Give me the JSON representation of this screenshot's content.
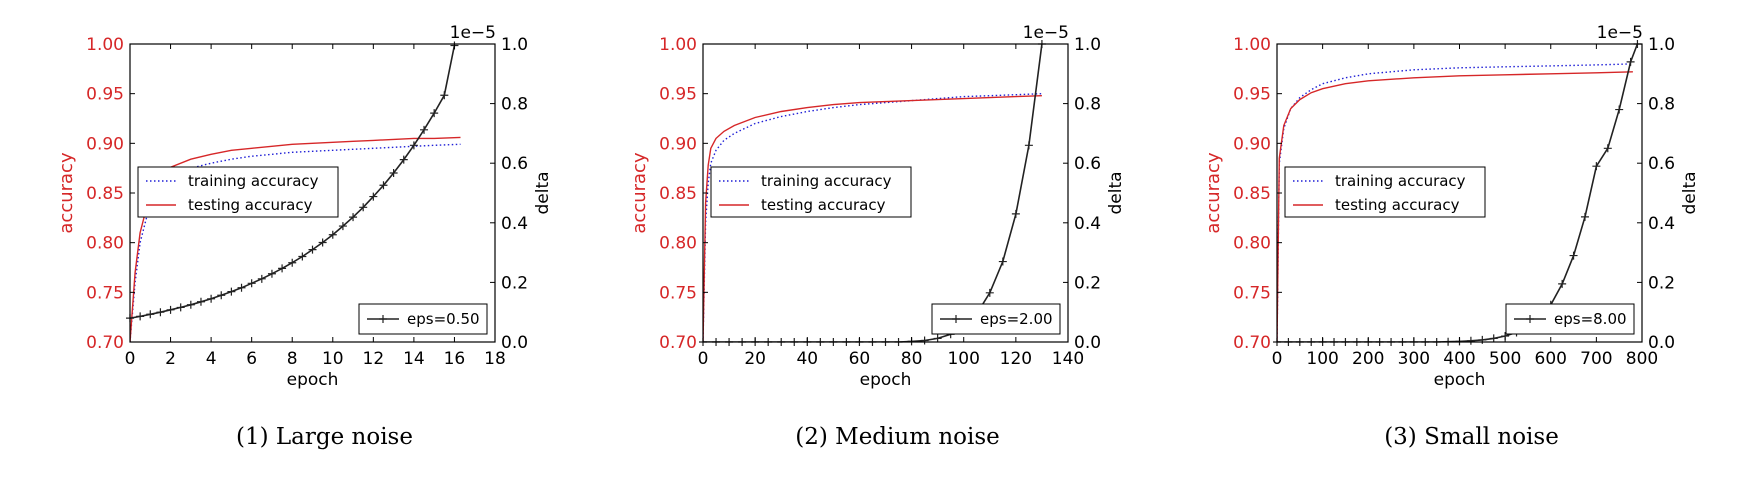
{
  "colors": {
    "accuracy_axis": "#d62728",
    "training": "#1f1fd6",
    "testing": "#d62728",
    "delta": "#222222"
  },
  "chart_data": [
    {
      "type": "line",
      "caption": "(1) Large noise",
      "xlabel": "epoch",
      "ylabel_left": "accuracy",
      "ylabel_right": "delta",
      "right_axis_exponent": "1e−5",
      "xlim": [
        0,
        18
      ],
      "xticks": [
        0,
        2,
        4,
        6,
        8,
        10,
        12,
        14,
        16,
        18
      ],
      "ylim_left": [
        0.7,
        1.0
      ],
      "yticks_left": [
        "0.70",
        "0.75",
        "0.80",
        "0.85",
        "0.90",
        "0.95",
        "1.00"
      ],
      "ylim_right": [
        0.0,
        1.0
      ],
      "yticks_right": [
        "0.0",
        "0.2",
        "0.4",
        "0.6",
        "0.8",
        "1.0"
      ],
      "legend_left": {
        "placement": "center-left",
        "entries": [
          "training accuracy",
          "testing accuracy"
        ]
      },
      "legend_right": {
        "placement": "bottom-right",
        "entries": [
          "eps=0.50"
        ]
      },
      "series": [
        {
          "name": "training accuracy",
          "axis": "left",
          "style": "dotted",
          "x": [
            0,
            0.25,
            0.5,
            1,
            1.5,
            2,
            3,
            4,
            5,
            6,
            7,
            8,
            9,
            10,
            11,
            12,
            13,
            14,
            15,
            16.3
          ],
          "y": [
            0.7,
            0.76,
            0.8,
            0.84,
            0.86,
            0.868,
            0.875,
            0.88,
            0.884,
            0.887,
            0.889,
            0.891,
            0.892,
            0.893,
            0.894,
            0.895,
            0.896,
            0.897,
            0.898,
            0.899
          ]
        },
        {
          "name": "testing accuracy",
          "axis": "left",
          "style": "solid",
          "x": [
            0,
            0.25,
            0.5,
            1,
            1.5,
            2,
            3,
            4,
            5,
            6,
            7,
            8,
            9,
            10,
            11,
            12,
            13,
            14,
            15,
            16.3
          ],
          "y": [
            0.7,
            0.77,
            0.81,
            0.85,
            0.868,
            0.876,
            0.884,
            0.889,
            0.893,
            0.895,
            0.897,
            0.899,
            0.9,
            0.901,
            0.902,
            0.903,
            0.904,
            0.905,
            0.905,
            0.906
          ]
        },
        {
          "name": "eps=0.50",
          "axis": "right",
          "style": "plus-markers",
          "x": [
            0,
            0.5,
            1,
            1.5,
            2,
            2.5,
            3,
            3.5,
            4,
            4.5,
            5,
            5.5,
            6,
            6.5,
            7,
            7.5,
            8,
            8.5,
            9,
            9.5,
            10,
            10.5,
            11,
            11.5,
            12,
            12.5,
            13,
            13.5,
            14,
            14.5,
            15,
            15.5,
            16
          ],
          "y": [
            0.08,
            0.086,
            0.093,
            0.1,
            0.108,
            0.116,
            0.125,
            0.135,
            0.145,
            0.157,
            0.169,
            0.182,
            0.197,
            0.212,
            0.229,
            0.247,
            0.266,
            0.287,
            0.31,
            0.334,
            0.36,
            0.389,
            0.419,
            0.452,
            0.488,
            0.526,
            0.567,
            0.612,
            0.66,
            0.712,
            0.768,
            0.828,
            0.995
          ]
        }
      ]
    },
    {
      "type": "line",
      "caption": "(2) Medium noise",
      "xlabel": "epoch",
      "ylabel_left": "accuracy",
      "ylabel_right": "delta",
      "right_axis_exponent": "1e−5",
      "xlim": [
        0,
        140
      ],
      "xticks": [
        0,
        20,
        40,
        60,
        80,
        100,
        120,
        140
      ],
      "ylim_left": [
        0.7,
        1.0
      ],
      "yticks_left": [
        "0.70",
        "0.75",
        "0.80",
        "0.85",
        "0.90",
        "0.95",
        "1.00"
      ],
      "ylim_right": [
        0.0,
        1.0
      ],
      "yticks_right": [
        "0.0",
        "0.2",
        "0.4",
        "0.6",
        "0.8",
        "1.0"
      ],
      "legend_left": {
        "placement": "center-left",
        "entries": [
          "training accuracy",
          "testing accuracy"
        ]
      },
      "legend_right": {
        "placement": "bottom-right",
        "entries": [
          "eps=2.00"
        ]
      },
      "series": [
        {
          "name": "training accuracy",
          "axis": "left",
          "style": "dotted",
          "x": [
            0,
            1,
            2,
            3,
            5,
            8,
            12,
            20,
            30,
            40,
            50,
            60,
            70,
            80,
            90,
            100,
            110,
            120,
            130
          ],
          "y": [
            0.7,
            0.82,
            0.86,
            0.88,
            0.893,
            0.903,
            0.91,
            0.92,
            0.927,
            0.932,
            0.936,
            0.939,
            0.941,
            0.943,
            0.945,
            0.947,
            0.948,
            0.949,
            0.95
          ]
        },
        {
          "name": "testing accuracy",
          "axis": "left",
          "style": "solid",
          "x": [
            0,
            1,
            2,
            3,
            5,
            8,
            12,
            20,
            30,
            40,
            50,
            60,
            70,
            80,
            90,
            100,
            110,
            120,
            130
          ],
          "y": [
            0.7,
            0.84,
            0.878,
            0.895,
            0.905,
            0.912,
            0.918,
            0.926,
            0.932,
            0.936,
            0.939,
            0.941,
            0.942,
            0.943,
            0.944,
            0.945,
            0.946,
            0.947,
            0.948
          ]
        },
        {
          "name": "eps=2.00",
          "axis": "right",
          "style": "plus-markers",
          "x": [
            0,
            5,
            10,
            15,
            20,
            25,
            30,
            35,
            40,
            45,
            50,
            55,
            60,
            65,
            70,
            75,
            80,
            85,
            90,
            95,
            100,
            105,
            110,
            115,
            120,
            125,
            130
          ],
          "y": [
            0.0,
            0.0,
            0.0,
            0.0,
            0.0,
            0.0,
            0.0,
            0.0,
            0.0,
            0.0,
            0.0,
            0.0,
            0.0,
            0.0,
            0.0,
            0.0,
            0.002,
            0.005,
            0.012,
            0.026,
            0.052,
            0.095,
            0.165,
            0.27,
            0.43,
            0.66,
            1.0
          ]
        }
      ]
    },
    {
      "type": "line",
      "caption": "(3) Small noise",
      "xlabel": "epoch",
      "ylabel_left": "accuracy",
      "ylabel_right": "delta",
      "right_axis_exponent": "1e−5",
      "xlim": [
        0,
        800
      ],
      "xticks": [
        0,
        100,
        200,
        300,
        400,
        500,
        600,
        700,
        800
      ],
      "ylim_left": [
        0.7,
        1.0
      ],
      "yticks_left": [
        "0.70",
        "0.75",
        "0.80",
        "0.85",
        "0.90",
        "0.95",
        "1.00"
      ],
      "ylim_right": [
        0.0,
        1.0
      ],
      "yticks_right": [
        "0.0",
        "0.2",
        "0.4",
        "0.6",
        "0.8",
        "1.0"
      ],
      "legend_left": {
        "placement": "center-left",
        "entries": [
          "training accuracy",
          "testing accuracy"
        ]
      },
      "legend_right": {
        "placement": "bottom-right",
        "entries": [
          "eps=8.00"
        ]
      },
      "series": [
        {
          "name": "training accuracy",
          "axis": "left",
          "style": "dotted",
          "x": [
            0,
            5,
            15,
            30,
            50,
            75,
            100,
            150,
            200,
            300,
            400,
            500,
            600,
            700,
            780
          ],
          "y": [
            0.7,
            0.88,
            0.915,
            0.935,
            0.946,
            0.954,
            0.96,
            0.966,
            0.97,
            0.974,
            0.976,
            0.977,
            0.978,
            0.979,
            0.98
          ]
        },
        {
          "name": "testing accuracy",
          "axis": "left",
          "style": "solid",
          "x": [
            0,
            5,
            15,
            30,
            50,
            75,
            100,
            150,
            200,
            300,
            400,
            500,
            600,
            700,
            780
          ],
          "y": [
            0.7,
            0.885,
            0.918,
            0.935,
            0.944,
            0.951,
            0.955,
            0.96,
            0.963,
            0.966,
            0.968,
            0.969,
            0.97,
            0.971,
            0.972
          ]
        },
        {
          "name": "eps=8.00",
          "axis": "right",
          "style": "plus-markers",
          "x": [
            0,
            25,
            50,
            75,
            100,
            125,
            150,
            175,
            200,
            225,
            250,
            275,
            300,
            325,
            350,
            375,
            400,
            425,
            450,
            475,
            500,
            525,
            550,
            575,
            600,
            625,
            650,
            675,
            700,
            725,
            750,
            775,
            790
          ],
          "y": [
            0,
            0,
            0,
            0,
            0,
            0,
            0,
            0,
            0,
            0,
            0,
            0,
            0,
            0,
            0,
            0.001,
            0.002,
            0.004,
            0.007,
            0.012,
            0.02,
            0.032,
            0.05,
            0.08,
            0.125,
            0.195,
            0.29,
            0.42,
            0.59,
            0.65,
            0.78,
            0.94,
            1.0
          ]
        }
      ]
    }
  ]
}
